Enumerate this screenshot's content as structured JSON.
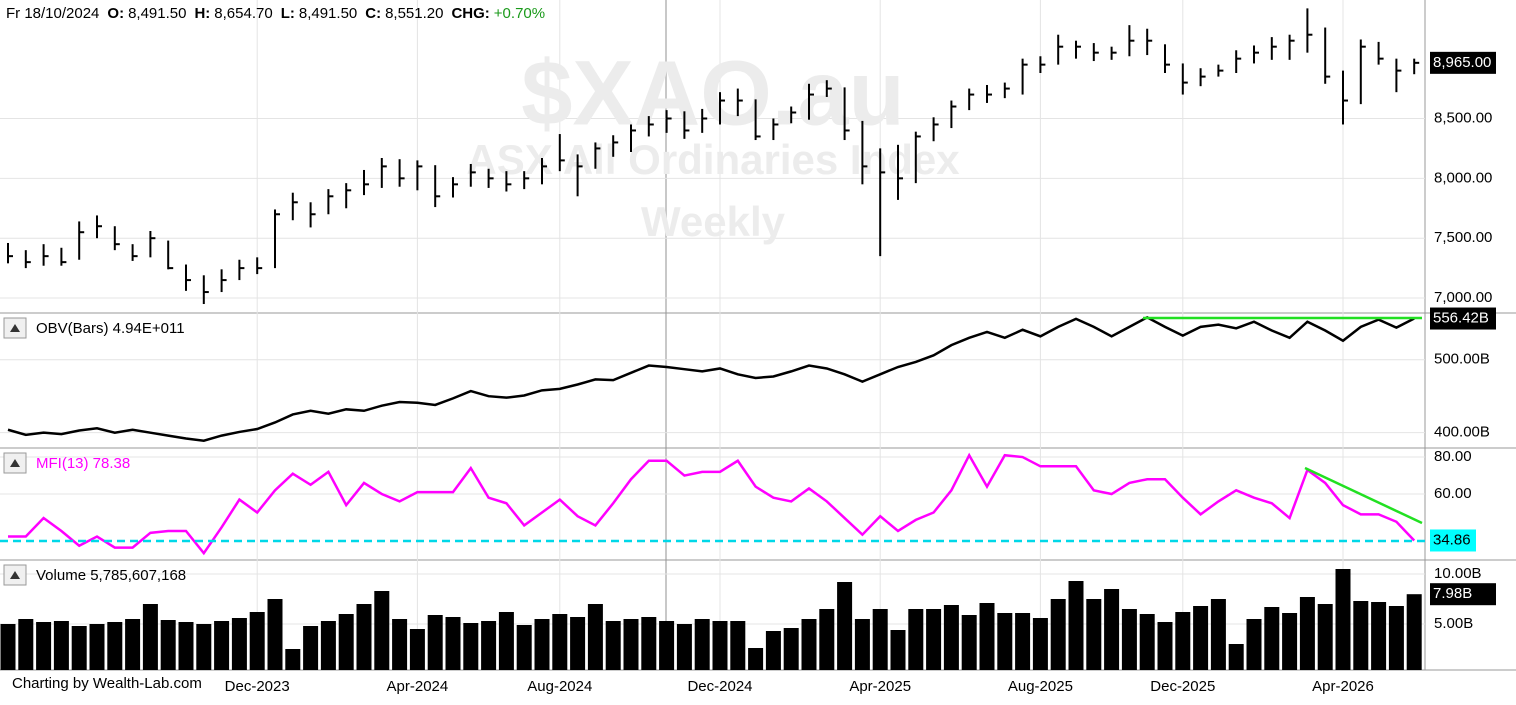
{
  "header": {
    "date": "Fr 18/10/2024",
    "fields": [
      {
        "name": "O:",
        "value": "8,491.50"
      },
      {
        "name": "H:",
        "value": "8,654.70"
      },
      {
        "name": "L:",
        "value": "8,491.50"
      },
      {
        "name": "C:",
        "value": "8,551.20"
      },
      {
        "name": "CHG:",
        "value": "+0.70%"
      }
    ]
  },
  "credit": "Charting by Wealth-Lab.com",
  "chart_data": [
    {
      "type": "ohlc",
      "watermark": [
        "$XAO.au",
        "ASX All Ordinaries Index",
        "Weekly"
      ],
      "color": "#000000",
      "grid": true,
      "ylim": [
        6875,
        9490
      ],
      "yticks": [
        {
          "value": 7000,
          "label": "7,000.00"
        },
        {
          "value": 7500,
          "label": "7,500.00"
        },
        {
          "value": 8000,
          "label": "8,000.00"
        },
        {
          "value": 8500,
          "label": "8,500.00"
        }
      ],
      "last_label": {
        "value": 8965,
        "label": "8,965.00"
      },
      "high": [
        7460,
        7400,
        7450,
        7420,
        7640,
        7690,
        7600,
        7450,
        7560,
        7480,
        7280,
        7190,
        7240,
        7320,
        7340,
        7740,
        7880,
        7800,
        7910,
        7960,
        8070,
        8170,
        8160,
        8150,
        8110,
        8010,
        8120,
        8080,
        8060,
        8060,
        8170,
        8370,
        8200,
        8300,
        8360,
        8450,
        8520,
        8570,
        8560,
        8580,
        8720,
        8750,
        8660,
        8500,
        8600,
        8790,
        8820,
        8760,
        8480,
        8250,
        8280,
        8390,
        8510,
        8650,
        8750,
        8780,
        8800,
        9000,
        9020,
        9200,
        9150,
        9130,
        9100,
        9280,
        9250,
        9120,
        8960,
        8920,
        8950,
        9070,
        9110,
        9180,
        9200,
        9420,
        9260,
        8900,
        9160,
        9140,
        9000,
        9000
      ],
      "low": [
        7290,
        7250,
        7270,
        7270,
        7320,
        7500,
        7400,
        7310,
        7340,
        7240,
        7060,
        6950,
        7050,
        7150,
        7200,
        7250,
        7650,
        7590,
        7700,
        7750,
        7860,
        7920,
        7930,
        7900,
        7760,
        7840,
        7930,
        7920,
        7890,
        7910,
        7950,
        8060,
        7850,
        8080,
        8180,
        8220,
        8350,
        8380,
        8330,
        8380,
        8450,
        8520,
        8320,
        8320,
        8460,
        8490,
        8680,
        8320,
        7950,
        7350,
        7820,
        7960,
        8310,
        8420,
        8570,
        8630,
        8670,
        8700,
        8880,
        8950,
        9000,
        8980,
        8990,
        9020,
        9030,
        8880,
        8700,
        8770,
        8850,
        8880,
        8960,
        8990,
        8990,
        9050,
        8790,
        8450,
        8620,
        8950,
        8720,
        8870
      ],
      "close": [
        7350,
        7300,
        7350,
        7300,
        7550,
        7600,
        7450,
        7350,
        7500,
        7250,
        7150,
        7050,
        7150,
        7250,
        7250,
        7700,
        7800,
        7700,
        7850,
        7900,
        7950,
        8100,
        8000,
        8100,
        7850,
        7950,
        8050,
        8000,
        7950,
        8000,
        8100,
        8150,
        8100,
        8250,
        8300,
        8400,
        8450,
        8500,
        8400,
        8500,
        8650,
        8650,
        8350,
        8450,
        8550,
        8700,
        8750,
        8400,
        8100,
        8050,
        8000,
        8350,
        8450,
        8600,
        8700,
        8700,
        8750,
        8950,
        8950,
        9100,
        9100,
        9050,
        9050,
        9150,
        9150,
        8950,
        8800,
        8850,
        8900,
        9000,
        9050,
        9100,
        9150,
        9200,
        8850,
        8650,
        9100,
        9000,
        8900,
        8965
      ]
    },
    {
      "type": "line",
      "title": "OBV(Bars) 4.94E+011",
      "color": "#000000",
      "grid": true,
      "ylim": [
        379,
        564
      ],
      "yticks": [
        {
          "value": 400,
          "label": "400.00B"
        },
        {
          "value": 500,
          "label": "500.00B"
        }
      ],
      "last_label": {
        "value": 556.42,
        "label": "556.42B"
      },
      "values": [
        404,
        397,
        400,
        398,
        403,
        406,
        400,
        404,
        400,
        396,
        392,
        389,
        396,
        401,
        405,
        414,
        425,
        430,
        426,
        432,
        430,
        437,
        442,
        441,
        438,
        447,
        457,
        450,
        448,
        451,
        458,
        460,
        466,
        473,
        472,
        482,
        492,
        490,
        487,
        484,
        488,
        480,
        475,
        477,
        484,
        492,
        488,
        480,
        470,
        480,
        490,
        497,
        506,
        520,
        530,
        538,
        530,
        541,
        532,
        545,
        556,
        545,
        532,
        545,
        558,
        545,
        533,
        545,
        548,
        543,
        552,
        540,
        530,
        552,
        540,
        526,
        545,
        555,
        544,
        556.42
      ]
    },
    {
      "type": "line",
      "title": "MFI(13) 78.38",
      "color": "#ff00ff",
      "grid": true,
      "ylim": [
        24.3,
        84.9
      ],
      "yticks": [
        {
          "value": 60,
          "label": "60.00"
        },
        {
          "value": 80,
          "label": "80.00"
        }
      ],
      "last_label": 34.86,
      "values": [
        37,
        37,
        47,
        40,
        32,
        37,
        31,
        31,
        39,
        40,
        40,
        28,
        42,
        57,
        50,
        62,
        71,
        65,
        72,
        54,
        66,
        60,
        56,
        61,
        61,
        61,
        74,
        58,
        55,
        43,
        50,
        57,
        48,
        43,
        55,
        68,
        78,
        78,
        70,
        72,
        72,
        78,
        64,
        58,
        56,
        63,
        56,
        47,
        38,
        48,
        40,
        46,
        50,
        62,
        81,
        64,
        81,
        80,
        75,
        75,
        75,
        62,
        60,
        66,
        68,
        68,
        58,
        49,
        56,
        62,
        58,
        55,
        47,
        73,
        66,
        54,
        49,
        49,
        45,
        34.86
      ]
    },
    {
      "type": "bar",
      "title": "Volume 5,785,607,168",
      "color": "#000000",
      "grid": true,
      "ylim": [
        0.4,
        11.4
      ],
      "yticks": [
        {
          "value": 5,
          "label": "5.00B"
        },
        {
          "value": 10,
          "label": "10.00B"
        }
      ],
      "last_label": {
        "value": 7.98,
        "label": "7.98B"
      },
      "categories": [
        null,
        null,
        null,
        null,
        null,
        null,
        null,
        null,
        null,
        null,
        null,
        null,
        null,
        null,
        "Dec-2023",
        null,
        null,
        null,
        null,
        null,
        null,
        null,
        null,
        "Apr-2024",
        null,
        null,
        null,
        null,
        null,
        null,
        null,
        "Aug-2024",
        null,
        null,
        null,
        null,
        null,
        null,
        null,
        null,
        "Dec-2024",
        null,
        null,
        null,
        null,
        null,
        null,
        null,
        null,
        "Apr-2025",
        null,
        null,
        null,
        null,
        null,
        null,
        null,
        null,
        "Aug-2025",
        null,
        null,
        null,
        null,
        null,
        null,
        null,
        "Dec-2025",
        null,
        null,
        null,
        null,
        null,
        null,
        null,
        null,
        "Apr-2026",
        null,
        null,
        null,
        null
      ],
      "values": [
        5.0,
        5.5,
        5.2,
        5.3,
        4.8,
        5.0,
        5.2,
        5.5,
        7.0,
        5.4,
        5.2,
        5.0,
        5.3,
        5.6,
        6.2,
        7.5,
        2.5,
        4.8,
        5.3,
        6.0,
        7.0,
        8.3,
        5.5,
        4.5,
        5.9,
        5.7,
        5.1,
        5.3,
        6.2,
        4.9,
        5.5,
        6.0,
        5.7,
        7.0,
        5.3,
        5.5,
        5.7,
        5.3,
        5.0,
        5.5,
        5.3,
        5.3,
        2.6,
        4.3,
        4.6,
        5.5,
        6.5,
        9.2,
        5.5,
        6.5,
        4.4,
        6.5,
        6.5,
        6.9,
        5.9,
        7.1,
        6.1,
        6.1,
        5.6,
        7.5,
        9.3,
        7.5,
        8.5,
        6.5,
        6.0,
        5.2,
        6.2,
        6.8,
        7.5,
        3.0,
        5.5,
        6.7,
        6.1,
        7.7,
        7.0,
        10.5,
        7.3,
        7.2,
        6.8,
        7.98
      ]
    }
  ]
}
